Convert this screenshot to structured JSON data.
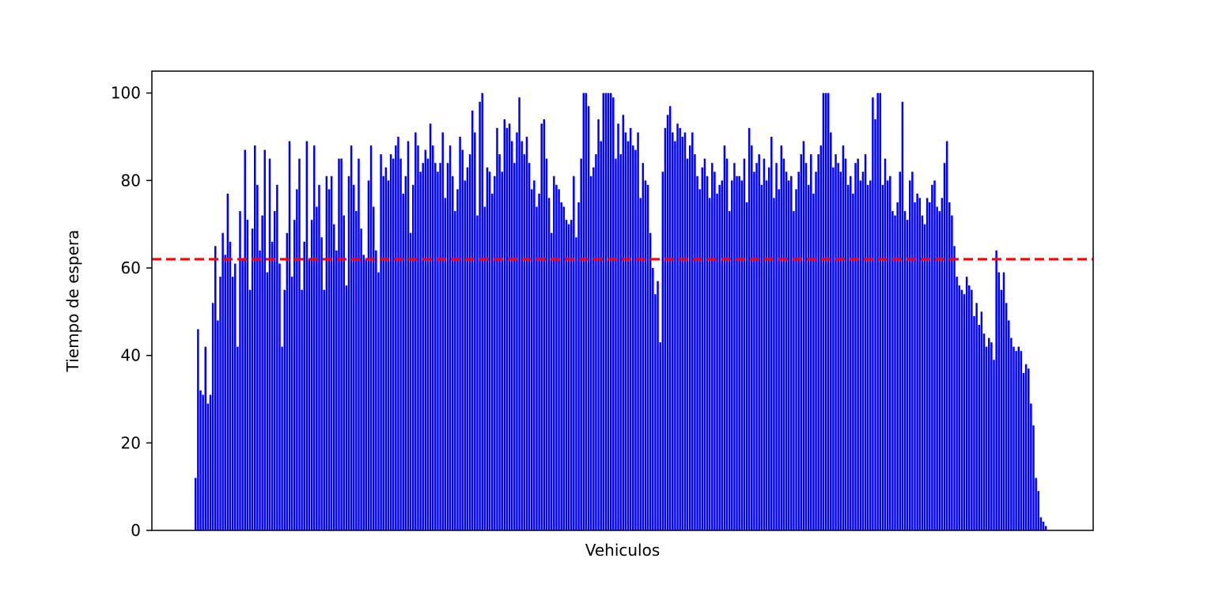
{
  "chart_data": {
    "type": "bar",
    "title": "",
    "xlabel": "Vehiculos",
    "ylabel": "Tiempo de espera",
    "ylim": [
      0,
      105
    ],
    "yticks": [
      0,
      20,
      40,
      60,
      80,
      100
    ],
    "xticks": [],
    "grid": false,
    "reference_line": {
      "value": 62,
      "style": "dashed"
    },
    "colors": {
      "bars": "#0000ff",
      "reference_line": "#ff0000"
    },
    "values": [
      12,
      46,
      32,
      31,
      42,
      29,
      31,
      52,
      65,
      48,
      58,
      68,
      63,
      77,
      66,
      58,
      61,
      42,
      73,
      62,
      87,
      71,
      55,
      69,
      88,
      79,
      64,
      72,
      87,
      59,
      85,
      66,
      73,
      79,
      61,
      42,
      55,
      68,
      89,
      58,
      71,
      78,
      85,
      55,
      66,
      89,
      62,
      71,
      88,
      74,
      79,
      67,
      55,
      81,
      78,
      81,
      70,
      64,
      85,
      85,
      72,
      56,
      81,
      88,
      79,
      73,
      85,
      69,
      63,
      62,
      80,
      88,
      74,
      64,
      59,
      86,
      81,
      83,
      80,
      86,
      85,
      88,
      90,
      85,
      77,
      81,
      89,
      68,
      79,
      91,
      88,
      82,
      84,
      87,
      85,
      93,
      88,
      84,
      82,
      84,
      91,
      76,
      84,
      88,
      81,
      73,
      78,
      90,
      87,
      80,
      83,
      86,
      96,
      91,
      72,
      98,
      100,
      74,
      83,
      82,
      77,
      81,
      92,
      86,
      82,
      94,
      92,
      93,
      89,
      84,
      91,
      99,
      89,
      86,
      90,
      84,
      78,
      80,
      74,
      77,
      93,
      94,
      85,
      76,
      68,
      81,
      79,
      78,
      75,
      74,
      71,
      70,
      71,
      81,
      67,
      75,
      85,
      100,
      100,
      97,
      81,
      83,
      86,
      94,
      89,
      100,
      100,
      100,
      100,
      99,
      85,
      93,
      86,
      95,
      91,
      89,
      92,
      88,
      87,
      91,
      76,
      84,
      80,
      79,
      68,
      60,
      54,
      57,
      43,
      82,
      92,
      95,
      97,
      91,
      89,
      93,
      92,
      90,
      91,
      85,
      88,
      91,
      86,
      81,
      78,
      83,
      85,
      81,
      76,
      84,
      82,
      77,
      79,
      80,
      88,
      85,
      73,
      80,
      84,
      81,
      81,
      80,
      85,
      75,
      92,
      88,
      82,
      84,
      86,
      79,
      85,
      80,
      83,
      90,
      76,
      84,
      78,
      88,
      85,
      82,
      80,
      81,
      73,
      78,
      82,
      86,
      89,
      84,
      79,
      86,
      77,
      82,
      86,
      88,
      100,
      100,
      100,
      91,
      83,
      86,
      84,
      82,
      88,
      85,
      79,
      81,
      77,
      84,
      85,
      80,
      82,
      86,
      79,
      80,
      99,
      94,
      100,
      100,
      79,
      85,
      80,
      81,
      73,
      72,
      75,
      82,
      98,
      73,
      71,
      80,
      82,
      75,
      77,
      76,
      72,
      70,
      76,
      75,
      79,
      80,
      74,
      73,
      76,
      84,
      89,
      75,
      72,
      65,
      58,
      56,
      55,
      54,
      58,
      56,
      55,
      49,
      52,
      47,
      50,
      45,
      42,
      44,
      43,
      39,
      64,
      59,
      55,
      59,
      52,
      48,
      44,
      42,
      41,
      42,
      41,
      36,
      38,
      37,
      29,
      24,
      12,
      9,
      3,
      2,
      1
    ]
  }
}
